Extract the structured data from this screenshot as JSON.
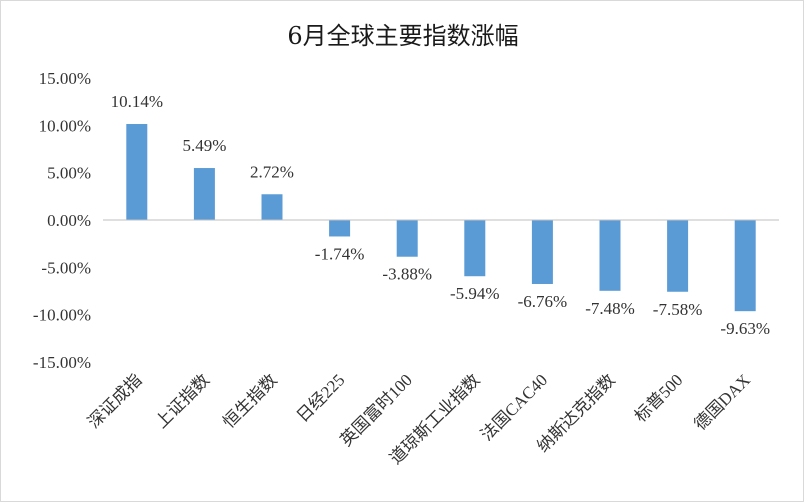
{
  "chart_data": {
    "type": "bar",
    "title": "6月全球主要指数涨幅",
    "categories": [
      "深证成指",
      "上证指数",
      "恒生指数",
      "日经225",
      "英国富时100",
      "道琼斯工业指数",
      "法国CAC40",
      "纳斯达克指数",
      "标普500",
      "德国DAX"
    ],
    "values": [
      10.14,
      5.49,
      2.72,
      -1.74,
      -3.88,
      -5.94,
      -6.76,
      -7.48,
      -7.58,
      -9.63
    ],
    "data_labels": [
      "10.14%",
      "5.49%",
      "2.72%",
      "-1.74%",
      "-3.88%",
      "-5.94%",
      "-6.76%",
      "-7.48%",
      "-7.58%",
      "-9.63%"
    ],
    "yticks": [
      15,
      10,
      5,
      0,
      -5,
      -10,
      -15
    ],
    "ytick_labels": [
      "15.00%",
      "10.00%",
      "5.00%",
      "0.00%",
      "-5.00%",
      "-10.00%",
      "-15.00%"
    ],
    "ylim": [
      -15,
      15
    ],
    "xlabel": "",
    "ylabel": "",
    "grid": false,
    "legend": "none",
    "bar_color": "#5b9bd5"
  }
}
